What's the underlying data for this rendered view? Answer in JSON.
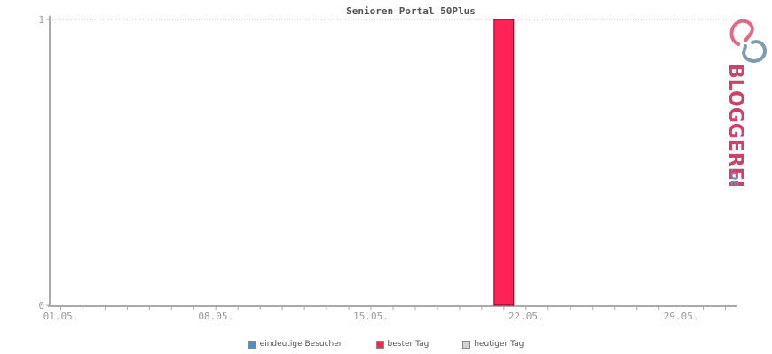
{
  "chart_data": {
    "type": "bar",
    "title": "Senioren Portal 50Plus",
    "xlabel": "",
    "ylabel": "",
    "x_start": "01.05.",
    "x_end": "31.05.",
    "x_tick_labels": [
      "01.05.",
      "08.05.",
      "15.05.",
      "22.05.",
      "29.05."
    ],
    "y_tick_labels": [
      "0",
      "1"
    ],
    "ylim": [
      0,
      1
    ],
    "grid": true,
    "legend_position": "bottom",
    "series": [
      {
        "name": "eindeutige Besucher",
        "color": "#4d8fc2",
        "values": []
      },
      {
        "name": "bester Tag",
        "color": "#ff2255",
        "values": [
          {
            "x": "21.05.",
            "y": 1
          }
        ]
      },
      {
        "name": "heutiger Tag",
        "color": "#d3d3d3",
        "values": []
      }
    ]
  },
  "logo": {
    "text": "BLOGGEREI",
    "suffix": ".DE",
    "colors": {
      "primary": "#c8446a",
      "secondary": "#6f8ea8"
    }
  }
}
